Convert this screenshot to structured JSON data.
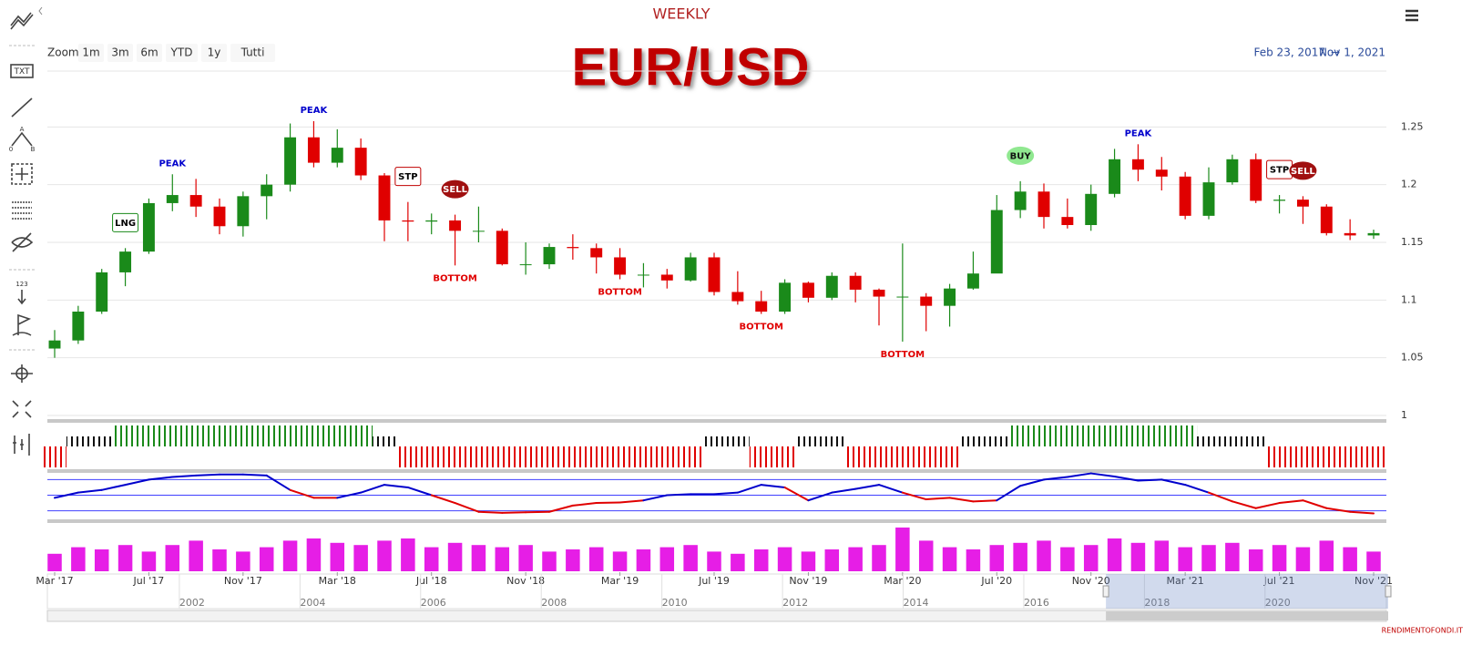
{
  "header": {
    "zoom_label": "Zoom",
    "zoom_buttons": [
      "1m",
      "3m",
      "6m",
      "YTD",
      "1y",
      "Tutti"
    ],
    "range_from": "Feb 23, 2017",
    "range_sep": "→",
    "range_to": "Nov 1, 2021",
    "footer": "RENDIMENTOFONDI.IT"
  },
  "toolbar": {
    "txt": "TXT",
    "points": [
      "A",
      "0",
      "B"
    ],
    "num": "123"
  },
  "chart_data": [
    {
      "type": "candlestick",
      "subtitle": "WEEKLY",
      "title": "EUR/USD",
      "categories": [
        "Mar '17",
        null,
        null,
        null,
        "Jul '17",
        null,
        null,
        null,
        "Nov '17",
        null,
        null,
        null,
        "Mar '18",
        null,
        null,
        null,
        "Jul '18",
        null,
        null,
        null,
        "Nov '18",
        null,
        null,
        null,
        "Mar '19",
        null,
        null,
        null,
        "Jul '19",
        null,
        null,
        null,
        "Nov '19",
        null,
        null,
        null,
        "Mar '20",
        null,
        null,
        null,
        "Jul '20",
        null,
        null,
        null,
        "Nov '20",
        null,
        null,
        null,
        "Mar '21",
        null,
        null,
        null,
        "Jul '21",
        null,
        null,
        null,
        "Nov '21"
      ],
      "open": [
        1.058,
        1.065,
        1.09,
        1.124,
        1.142,
        1.184,
        1.191,
        1.181,
        1.164,
        1.19,
        1.2,
        1.241,
        1.219,
        1.232,
        1.208,
        1.169,
        1.168,
        1.169,
        1.16,
        1.16,
        1.131,
        1.131,
        1.146,
        1.145,
        1.137,
        1.122,
        1.122,
        1.117,
        1.137,
        1.107,
        1.099,
        1.09,
        1.115,
        1.102,
        1.121,
        1.109,
        1.103,
        1.103,
        1.095,
        1.11,
        1.123,
        1.178,
        1.194,
        1.172,
        1.165,
        1.192,
        1.222,
        1.213,
        1.207,
        1.173,
        1.202,
        1.222,
        1.186,
        1.187,
        1.181,
        1.158,
        1.156
      ],
      "high": [
        1.074,
        1.095,
        1.127,
        1.145,
        1.188,
        1.209,
        1.205,
        1.188,
        1.194,
        1.209,
        1.253,
        1.255,
        1.248,
        1.24,
        1.21,
        1.185,
        1.175,
        1.174,
        1.181,
        1.162,
        1.15,
        1.149,
        1.157,
        1.149,
        1.145,
        1.132,
        1.127,
        1.141,
        1.141,
        1.125,
        1.108,
        1.118,
        1.116,
        1.124,
        1.124,
        1.11,
        1.149,
        1.106,
        1.114,
        1.142,
        1.191,
        1.203,
        1.201,
        1.188,
        1.2,
        1.231,
        1.235,
        1.224,
        1.211,
        1.215,
        1.226,
        1.227,
        1.191,
        1.19,
        1.183,
        1.17,
        1.161
      ],
      "low": [
        1.05,
        1.062,
        1.088,
        1.112,
        1.14,
        1.177,
        1.172,
        1.157,
        1.155,
        1.17,
        1.194,
        1.215,
        1.215,
        1.204,
        1.151,
        1.151,
        1.157,
        1.13,
        1.15,
        1.13,
        1.122,
        1.127,
        1.135,
        1.123,
        1.118,
        1.111,
        1.11,
        1.116,
        1.104,
        1.096,
        1.088,
        1.088,
        1.098,
        1.1,
        1.098,
        1.078,
        1.064,
        1.073,
        1.077,
        1.109,
        1.124,
        1.171,
        1.162,
        1.162,
        1.16,
        1.189,
        1.203,
        1.195,
        1.17,
        1.17,
        1.2,
        1.184,
        1.175,
        1.166,
        1.156,
        1.152,
        1.153
      ],
      "close": [
        1.065,
        1.09,
        1.124,
        1.142,
        1.184,
        1.191,
        1.181,
        1.164,
        1.19,
        1.2,
        1.241,
        1.219,
        1.232,
        1.208,
        1.169,
        1.168,
        1.169,
        1.16,
        1.16,
        1.131,
        1.131,
        1.146,
        1.145,
        1.137,
        1.122,
        1.122,
        1.117,
        1.137,
        1.107,
        1.099,
        1.09,
        1.115,
        1.102,
        1.121,
        1.109,
        1.103,
        1.103,
        1.095,
        1.11,
        1.123,
        1.178,
        1.194,
        1.172,
        1.165,
        1.192,
        1.222,
        1.213,
        1.207,
        1.173,
        1.202,
        1.222,
        1.186,
        1.187,
        1.181,
        1.158,
        1.156,
        1.158
      ],
      "up_color": "#1a8a1a",
      "down_color": "#e00000",
      "ylim": [
        1,
        1.3
      ],
      "yticks": [
        1,
        1.05,
        1.1,
        1.15,
        1.2,
        1.25
      ],
      "grid": true,
      "annotations": [
        {
          "text": "PEAK",
          "at": 5,
          "kind": "peak"
        },
        {
          "text": "PEAK",
          "at": 11,
          "kind": "peak"
        },
        {
          "text": "PEAK",
          "at": 46,
          "kind": "peak"
        },
        {
          "text": "BOTTOM",
          "at": 17,
          "kind": "bottom"
        },
        {
          "text": "BOTTOM",
          "at": 24,
          "kind": "bottom"
        },
        {
          "text": "BOTTOM",
          "at": 30,
          "kind": "bottom"
        },
        {
          "text": "BOTTOM",
          "at": 36,
          "kind": "bottom"
        },
        {
          "text": "LNG",
          "at": 3,
          "kind": "long"
        },
        {
          "text": "STP",
          "at": 15,
          "kind": "stop"
        },
        {
          "text": "SELL",
          "at": 17,
          "kind": "sell"
        },
        {
          "text": "BUY",
          "at": 41,
          "kind": "buy"
        },
        {
          "text": "STP",
          "at": 52,
          "kind": "stop"
        },
        {
          "text": "SELL",
          "at": 53,
          "kind": "sell"
        }
      ]
    },
    {
      "type": "signal",
      "values": [
        "short",
        "neutral",
        "neutral",
        "long",
        "long",
        "long",
        "long",
        "long",
        "long",
        "long",
        "long",
        "long",
        "long",
        "long",
        "neutral",
        "short",
        "short",
        "short",
        "short",
        "short",
        "short",
        "short",
        "short",
        "short",
        "short",
        "short",
        "short",
        "short",
        "neutral",
        "neutral",
        "short",
        "short",
        "neutral",
        "neutral",
        "short",
        "short",
        "short",
        "short",
        "short",
        "neutral",
        "neutral",
        "long",
        "long",
        "long",
        "long",
        "long",
        "long",
        "long",
        "long",
        "neutral",
        "neutral",
        "neutral",
        "short",
        "short",
        "short",
        "short",
        "short"
      ],
      "colors": {
        "long": "#1a8a1a",
        "neutral": "#111111",
        "short": "#e00000"
      }
    },
    {
      "type": "line",
      "values": [
        45,
        55,
        60,
        70,
        80,
        85,
        88,
        90,
        90,
        88,
        60,
        45,
        45,
        55,
        70,
        65,
        50,
        35,
        18,
        16,
        17,
        18,
        30,
        35,
        36,
        40,
        50,
        52,
        52,
        55,
        70,
        65,
        40,
        55,
        62,
        70,
        55,
        42,
        45,
        38,
        40,
        68,
        80,
        85,
        92,
        86,
        78,
        80,
        70,
        55,
        38,
        25,
        35,
        40,
        25,
        18,
        15
      ],
      "ylim": [
        0,
        100
      ],
      "levels": [
        20,
        50,
        80
      ],
      "threshold": 50,
      "color_above": "#0000cc",
      "color_below": "#e00000",
      "level_color": "#4040ff"
    },
    {
      "type": "bar",
      "values": [
        40,
        55,
        50,
        60,
        45,
        60,
        70,
        50,
        45,
        55,
        70,
        75,
        65,
        60,
        70,
        75,
        55,
        65,
        60,
        55,
        60,
        45,
        50,
        55,
        45,
        50,
        55,
        60,
        45,
        40,
        50,
        55,
        45,
        50,
        55,
        60,
        100,
        70,
        55,
        50,
        60,
        65,
        70,
        55,
        60,
        75,
        65,
        70,
        55,
        60,
        65,
        50,
        60,
        55,
        70,
        55,
        45
      ],
      "ylim": [
        0,
        100
      ],
      "color": "#e61ee6"
    }
  ],
  "navigator": {
    "xlim": [
      1999.6,
      2021.8
    ],
    "xticks": [
      2002,
      2004,
      2006,
      2008,
      2010,
      2012,
      2014,
      2016,
      2018,
      2020
    ],
    "selection": [
      2017.15,
      2021.83
    ]
  }
}
